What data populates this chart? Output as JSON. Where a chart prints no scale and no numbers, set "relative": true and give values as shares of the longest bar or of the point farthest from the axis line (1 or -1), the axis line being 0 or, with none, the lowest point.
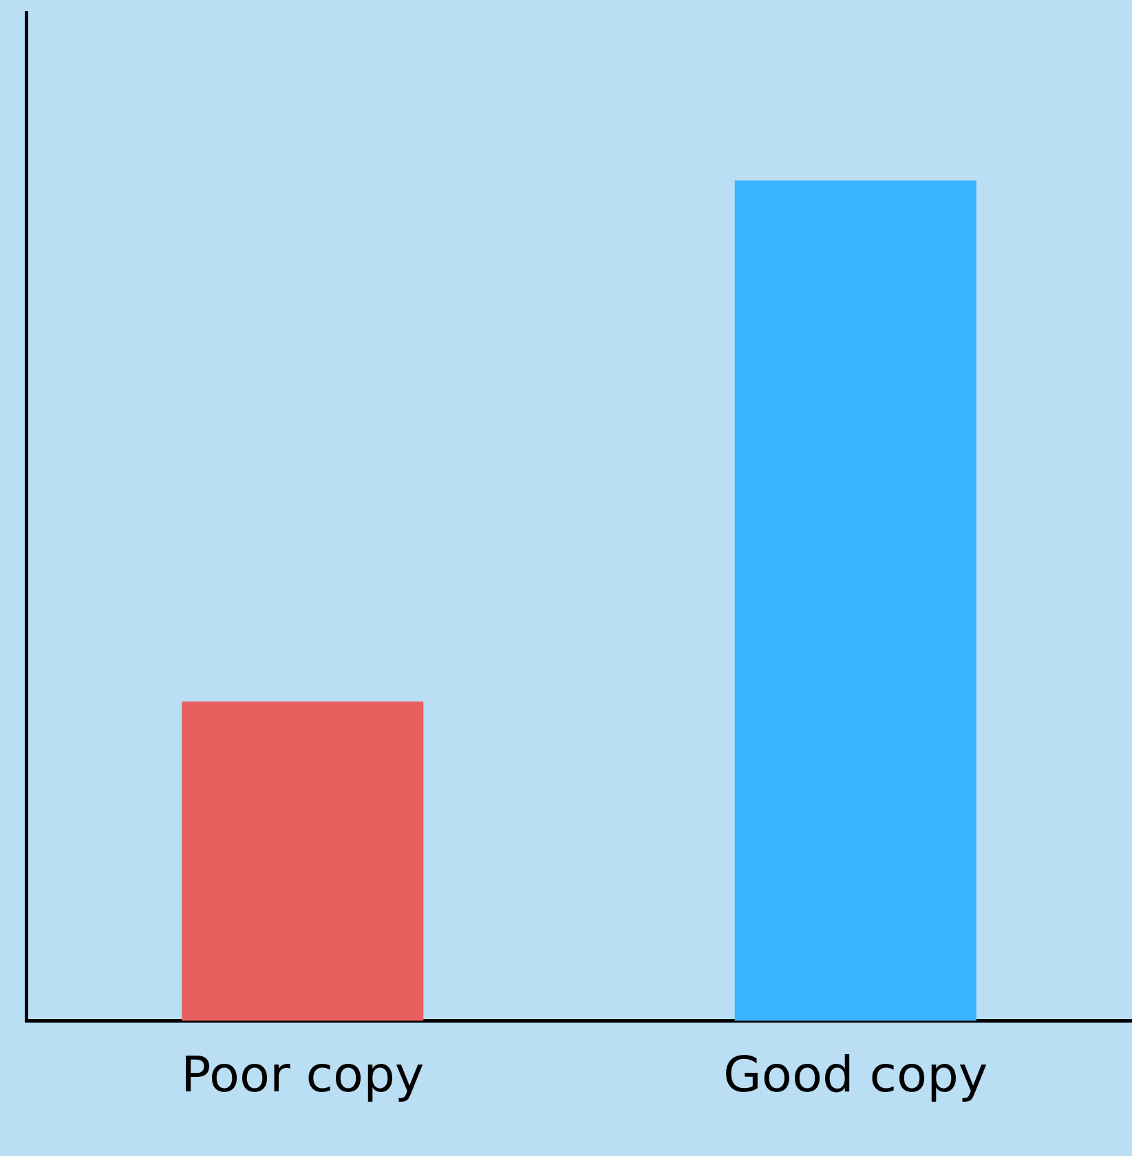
{
  "chart_data": {
    "type": "bar",
    "categories": [
      "Poor copy",
      "Good copy"
    ],
    "values": [
      0.38,
      1
    ],
    "colors": [
      "#e95f5f",
      "#3ab4ff"
    ],
    "relative": true,
    "grid": false,
    "legend": false
  }
}
